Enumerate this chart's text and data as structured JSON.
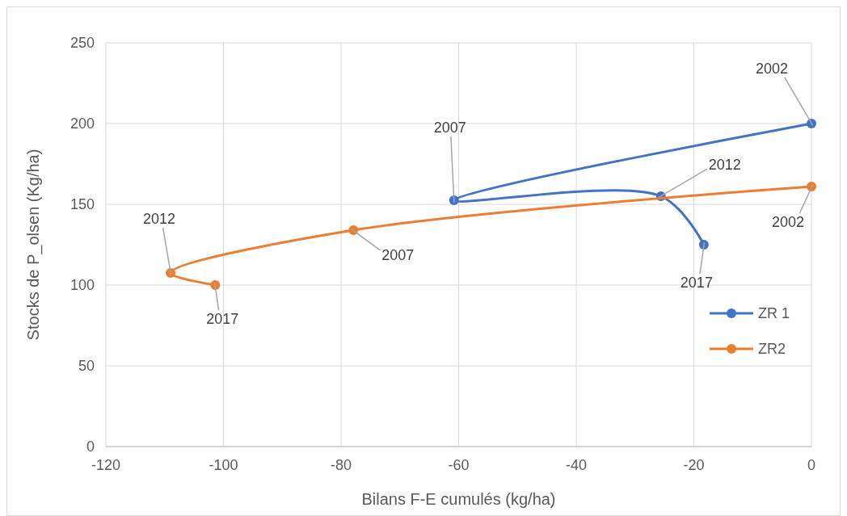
{
  "chart_data": {
    "type": "line",
    "xlabel": "Bilans F-E cumulés (kg/ha)",
    "ylabel": "Stocks de P_olsen (Kg/ha)",
    "xlim": [
      -120,
      0
    ],
    "xticks": [
      -120,
      -100,
      -80,
      -60,
      -40,
      -20,
      0
    ],
    "ylim": [
      0,
      250
    ],
    "yticks": [
      0,
      50,
      100,
      150,
      200,
      250
    ],
    "grid": true,
    "legend": "right",
    "marker": "circle",
    "series": [
      {
        "name": "ZR 1",
        "color": "#4472c4",
        "x": [
          0,
          -60.8,
          -25.6,
          -18.3
        ],
        "values": [
          200,
          152.5,
          155,
          125
        ]
      },
      {
        "name": "ZR2",
        "color": "#ed7d31",
        "x": [
          0,
          -77.9,
          -109,
          -101.4
        ],
        "values": [
          161,
          134,
          107.5,
          100
        ]
      }
    ],
    "annotations": [
      {
        "text": "2002",
        "x": 0,
        "y": 200
      },
      {
        "text": "2002",
        "x": 0,
        "y": 161
      },
      {
        "text": "2007",
        "x": -77.9,
        "y": 134
      },
      {
        "text": "2007",
        "x": -60.8,
        "y": 152.5
      },
      {
        "text": "2012",
        "x": -109,
        "y": 107.5
      },
      {
        "text": "2012",
        "x": -25.6,
        "y": 155
      },
      {
        "text": "2017",
        "x": -101.4,
        "y": 100
      },
      {
        "text": "2017",
        "x": -18.3,
        "y": 125
      }
    ]
  }
}
